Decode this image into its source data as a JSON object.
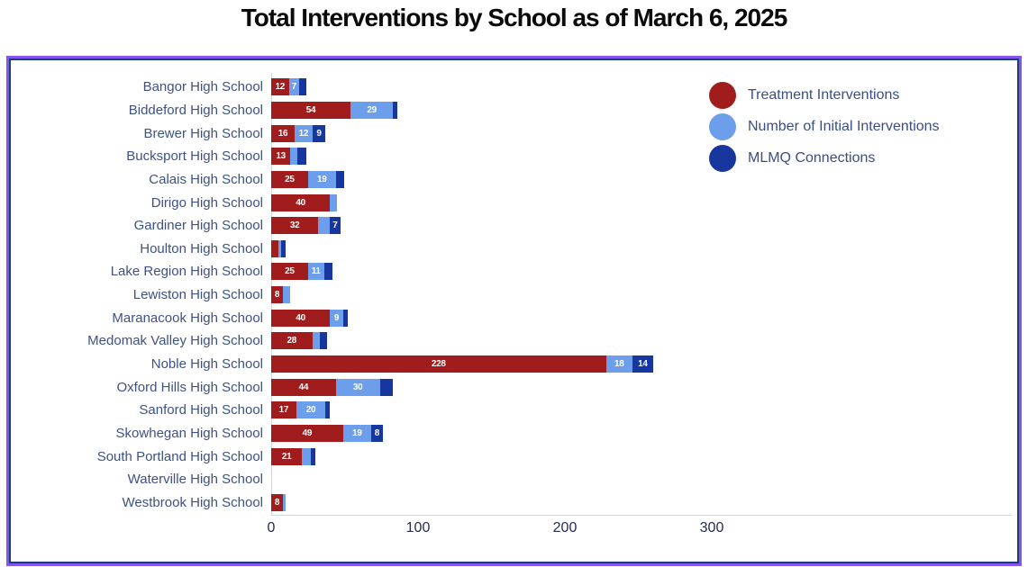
{
  "title": "Total Interventions by School as of March 6, 2025",
  "colors": {
    "treatment": "#A11C1C",
    "initial_interventions": "#6D9EEB",
    "mlmq": "#17379E",
    "frame_border_outer": "#8655EE",
    "frame_border_inner": "#1A3E78",
    "category_text": "#3D5284",
    "axis_text": "#232C52",
    "bar_value_text": "#FFFFFF",
    "axis_line": "#D6D6D6"
  },
  "chart_data": {
    "type": "bar",
    "orientation": "horizontal",
    "stacked": true,
    "grid": false,
    "title": "Total Interventions by School as of March 6, 2025",
    "xlabel": "",
    "ylabel": "",
    "xlim": [
      0,
      300
    ],
    "x_ticks": [
      "0",
      "100",
      "200",
      "300"
    ],
    "legend_position": "top-right",
    "categories": [
      "Bangor High School",
      "Biddeford High School",
      "Brewer High School",
      "Bucksport High School",
      "Calais High School",
      "Dirigo High School",
      "Gardiner High School",
      "Houlton High School",
      "Lake Region High School",
      "Lewiston High School",
      "Maranacook High School",
      "Medomak Valley High School",
      "Noble High School",
      "Oxford Hills High School",
      "Sanford High School",
      "Skowhegan High School",
      "South Portland High School",
      "Waterville High School",
      "Westbrook High School"
    ],
    "series": [
      {
        "name": "Treatment Interventions",
        "color": "#A11C1C",
        "values": [
          12,
          54,
          16,
          13,
          25,
          40,
          32,
          5,
          25,
          8,
          40,
          28,
          228,
          44,
          17,
          49,
          21,
          0,
          8
        ],
        "labels": [
          "12",
          "54",
          "16",
          "13",
          "25",
          "40",
          "32",
          "",
          "25",
          "8",
          "40",
          "28",
          "228",
          "44",
          "17",
          "49",
          "21",
          "",
          "8"
        ]
      },
      {
        "name": "Number of Initial Interventions",
        "color": "#6D9EEB",
        "values": [
          7,
          29,
          12,
          5,
          19,
          5,
          8,
          2,
          11,
          5,
          9,
          5,
          18,
          30,
          20,
          19,
          6,
          0,
          2
        ],
        "labels": [
          "7",
          "29",
          "12",
          "",
          "19",
          "",
          "",
          "",
          "11",
          "",
          "9",
          "",
          "18",
          "30",
          "20",
          "19",
          "",
          "",
          ""
        ]
      },
      {
        "name": "MLMQ Connections",
        "color": "#17379E",
        "values": [
          5,
          3,
          9,
          6,
          6,
          0,
          7,
          3,
          6,
          0,
          3,
          5,
          14,
          9,
          3,
          8,
          3,
          0,
          0
        ],
        "labels": [
          "",
          "",
          "9",
          "",
          "",
          "",
          "7",
          "",
          "",
          "",
          "",
          "",
          "14",
          "",
          "",
          "8",
          "",
          "",
          ""
        ]
      }
    ]
  },
  "legend": {
    "items": [
      {
        "label": "Treatment Interventions",
        "color": "#A11C1C"
      },
      {
        "label": "Number of Initial Interventions",
        "color": "#6D9EEB"
      },
      {
        "label": "MLMQ Connections",
        "color": "#17379E"
      }
    ]
  }
}
